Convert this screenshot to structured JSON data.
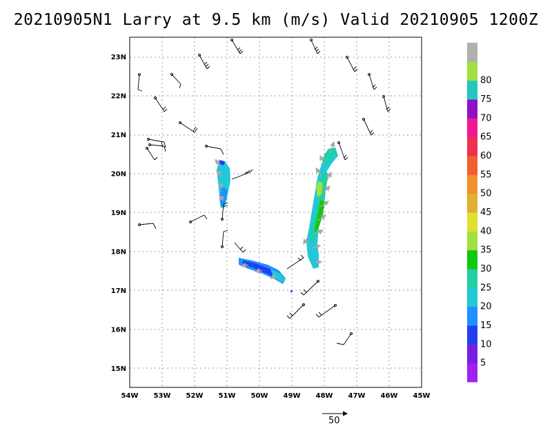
{
  "title": "20210905N1 Larry at 9.5 km (m/s) Valid 20210905 1200Z",
  "map": {
    "lon_range": [
      -54,
      -45
    ],
    "lat_range": [
      14.5,
      23.5
    ],
    "grid": "dotted",
    "x_ticks": [
      "54W",
      "53W",
      "52W",
      "51W",
      "50W",
      "49W",
      "48W",
      "47W",
      "46W",
      "45W"
    ],
    "y_ticks": [
      "15N",
      "16N",
      "17N",
      "18N",
      "19N",
      "20N",
      "21N",
      "22N",
      "23N"
    ]
  },
  "colorbar": {
    "labels": [
      "5",
      "10",
      "15",
      "20",
      "25",
      "30",
      "35",
      "40",
      "45",
      "50",
      "55",
      "60",
      "65",
      "70",
      "75",
      "80"
    ],
    "colors": [
      "#a020f0",
      "#7a1fe0",
      "#2040f0",
      "#1e90ff",
      "#20c8d8",
      "#20d0a0",
      "#10c810",
      "#a0e040",
      "#e0e030",
      "#e0b030",
      "#f09030",
      "#f06030",
      "#f03050",
      "#f01890",
      "#9010c8",
      "#20c8c0",
      "#a0e040",
      "#b0b0b0"
    ]
  },
  "reference_vector": {
    "label": "50"
  }
}
